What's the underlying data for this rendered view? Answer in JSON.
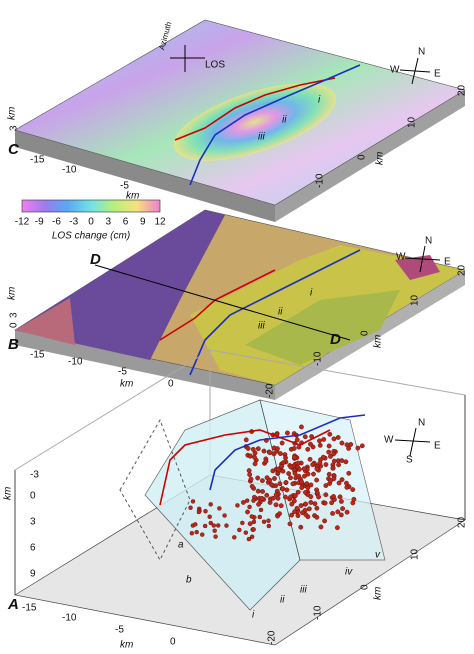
{
  "panel_c": {
    "label": "C",
    "z_axis_label": "km",
    "z_ticks": [
      "3"
    ],
    "x_ticks": [
      "-15",
      "-10",
      "-5"
    ],
    "x_axis_label": "km",
    "y_ticks": [
      "20",
      "10",
      "0",
      "-10"
    ],
    "y_axis_label": "km",
    "compass": {
      "north": "N",
      "west": "W",
      "east": "E"
    },
    "look_label": "LOS",
    "azimuth_label": "Azimuth",
    "segments": [
      "i",
      "ii",
      "iii"
    ]
  },
  "colorbar": {
    "ticks": [
      "-12",
      "-9",
      "-6",
      "-3",
      "0",
      "3",
      "6",
      "9",
      "12"
    ],
    "title": "LOS change (cm)"
  },
  "panel_b": {
    "label": "B",
    "section_labels": [
      "D",
      "D"
    ],
    "z_axis_label": "km",
    "z_ticks": [
      "3",
      "0"
    ],
    "x_ticks": [
      "-15",
      "-10",
      "-5",
      "0"
    ],
    "x_axis_label": "km",
    "y_ticks": [
      "20",
      "10",
      "0",
      "-10",
      "-20"
    ],
    "y_axis_label": "km",
    "compass": {
      "north": "N",
      "west": "W",
      "east": "E"
    },
    "segments": [
      "i",
      "ii",
      "iii"
    ]
  },
  "panel_a": {
    "label": "A",
    "z_axis_label": "km",
    "z_ticks": [
      "-3",
      "0",
      "3",
      "6",
      "9"
    ],
    "x_ticks": [
      "-15",
      "-10",
      "-5",
      "0"
    ],
    "x_axis_label": "km",
    "y_ticks": [
      "20",
      "10",
      "0",
      "-10",
      "-20"
    ],
    "y_axis_label": "km",
    "compass": {
      "north": "N",
      "west": "W",
      "east": "E",
      "south": "S"
    },
    "segments": [
      "i",
      "ii",
      "iii",
      "iv",
      "v"
    ],
    "plane_labels": [
      "a",
      "b"
    ]
  }
}
